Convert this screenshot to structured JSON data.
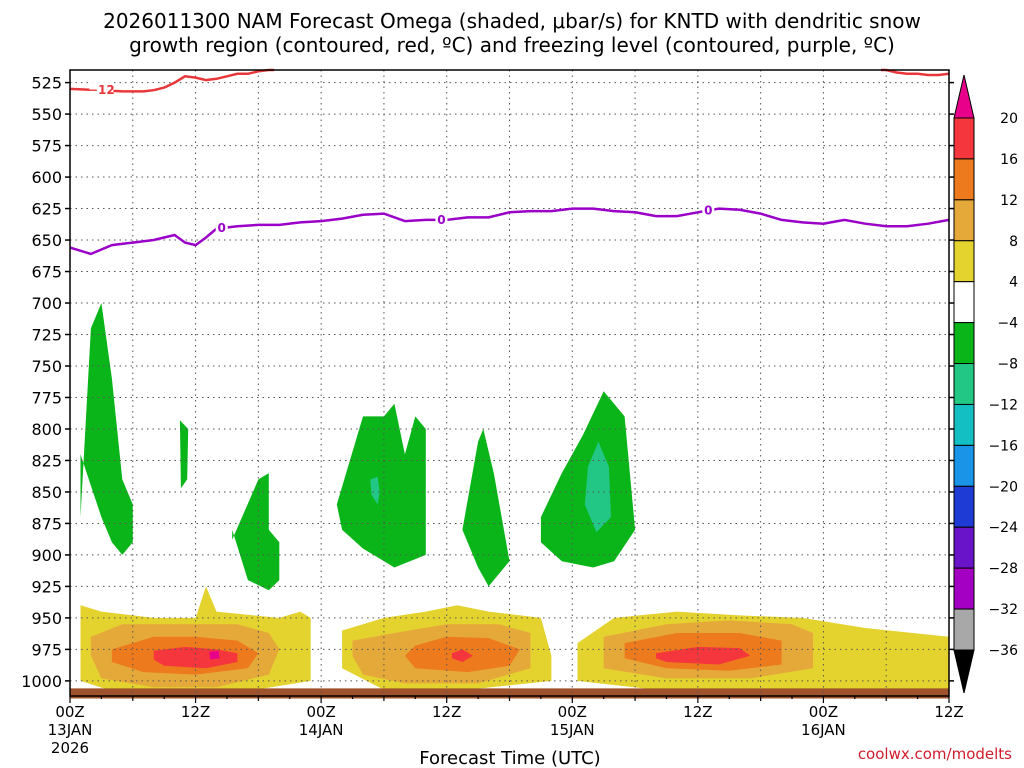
{
  "chart_data": {
    "type": "heatmap",
    "title_lines": [
      "2026011300 NAM Forecast Omega (shaded, μbar/s) for KNTD with dendritic snow",
      "growth region (contoured, red, ºC) and freezing level (contoured, purple, ºC)"
    ],
    "xlabel": "Forecast Time (UTC)",
    "ylabel": "",
    "y_axis_pressure_hpa": [
      525,
      550,
      575,
      600,
      625,
      650,
      675,
      700,
      725,
      750,
      775,
      800,
      825,
      850,
      875,
      900,
      925,
      950,
      975,
      1000
    ],
    "y_axis_reversed": true,
    "ylim": [
      515,
      1012
    ],
    "x_hours_range": [
      0,
      84
    ],
    "x_ticks": [
      {
        "hour": 0,
        "lines": [
          "00Z",
          "13JAN",
          "2026"
        ]
      },
      {
        "hour": 12,
        "lines": [
          "12Z"
        ]
      },
      {
        "hour": 24,
        "lines": [
          "00Z",
          "14JAN"
        ]
      },
      {
        "hour": 36,
        "lines": [
          "12Z"
        ]
      },
      {
        "hour": 48,
        "lines": [
          "00Z",
          "15JAN"
        ]
      },
      {
        "hour": 60,
        "lines": [
          "12Z"
        ]
      },
      {
        "hour": 72,
        "lines": [
          "00Z",
          "16JAN"
        ]
      },
      {
        "hour": 84,
        "lines": [
          "12Z"
        ]
      }
    ],
    "grid": true,
    "colorbar": {
      "labels": [
        "20",
        "16",
        "12",
        "8",
        "4",
        "−4",
        "−8",
        "−12",
        "−16",
        "−20",
        "−24",
        "−28",
        "−32",
        "−36"
      ],
      "colors": [
        "#e8008a",
        "#f5363d",
        "#ee7a1e",
        "#e5a93a",
        "#e4d32e",
        "#ffffff",
        "#0ab51a",
        "#22c785",
        "#14bfc3",
        "#1a94e6",
        "#1f3bd6",
        "#6a14c9",
        "#a400c4",
        "#a8a8a8",
        "#000000"
      ]
    },
    "contour_labels": {
      "dgz": "−12",
      "freezing": "0"
    },
    "freezing_level": {
      "hours": [
        0,
        2,
        4,
        6,
        8,
        10,
        11,
        12,
        13,
        14,
        16,
        18,
        20,
        22,
        24,
        26,
        28,
        30,
        32,
        34,
        36,
        38,
        40,
        42,
        44,
        46,
        48,
        50,
        52,
        54,
        56,
        58,
        60,
        62,
        64,
        66,
        68,
        70,
        72,
        74,
        76,
        78,
        80,
        82,
        84
      ],
      "hpa": [
        656,
        661,
        654,
        652,
        650,
        646,
        652,
        654,
        648,
        641,
        639,
        638,
        638,
        636,
        635,
        633,
        630,
        629,
        635,
        634,
        634,
        632,
        632,
        628,
        627,
        627,
        625,
        625,
        627,
        628,
        631,
        631,
        628,
        625,
        626,
        629,
        634,
        636,
        637,
        634,
        637,
        639,
        639,
        637,
        634
      ]
    },
    "dgz_minus12": [
      {
        "hours": [
          0,
          3,
          5,
          7,
          8,
          9,
          10,
          11,
          12,
          13,
          14,
          15,
          16,
          17,
          18,
          19,
          19.5
        ],
        "hpa": [
          530,
          531,
          532,
          532,
          531,
          529,
          525,
          520,
          521,
          523,
          522,
          520,
          518,
          518,
          516,
          515,
          514
        ]
      },
      {
        "hours": [
          77.5,
          78,
          79,
          80,
          81,
          82,
          83,
          84
        ],
        "hpa": [
          514,
          515,
          517,
          518,
          518,
          519,
          519,
          518
        ]
      }
    ],
    "omega_regions": [
      {
        "name": "green-13jan-early",
        "value": -6,
        "hours": [
          1,
          2,
          3,
          4,
          5,
          6,
          6,
          5,
          4,
          3,
          2,
          1
        ],
        "hpa": [
          870,
          720,
          700,
          760,
          840,
          860,
          890,
          900,
          890,
          870,
          845,
          820
        ]
      },
      {
        "name": "green-13jan-small",
        "value": -6,
        "hours": [
          10.5,
          11.3,
          11.2,
          10.6
        ],
        "hpa": [
          793,
          800,
          840,
          847
        ]
      },
      {
        "name": "green-13jan-late",
        "value": -6,
        "hours": [
          15.5,
          18,
          19,
          19,
          20,
          20,
          19,
          17,
          15.5
        ],
        "hpa": [
          888,
          840,
          835,
          880,
          890,
          920,
          928,
          920,
          880
        ]
      },
      {
        "name": "green-14jan-a",
        "value": -6,
        "hours": [
          25.5,
          28,
          30,
          31,
          32,
          33,
          34,
          34,
          31,
          28,
          26,
          25.5
        ],
        "hpa": [
          860,
          790,
          790,
          780,
          820,
          790,
          800,
          900,
          910,
          895,
          880,
          860
        ]
      },
      {
        "name": "green-14jan-b",
        "value": -6,
        "hours": [
          37.5,
          39,
          39.5,
          40.5,
          42,
          40,
          39,
          37.5
        ],
        "hpa": [
          880,
          810,
          800,
          835,
          905,
          925,
          910,
          880
        ]
      },
      {
        "name": "green-15jan",
        "value": -6,
        "hours": [
          45,
          47,
          49,
          51,
          53,
          54,
          52,
          50,
          47,
          45
        ],
        "hpa": [
          870,
          835,
          805,
          770,
          790,
          880,
          905,
          910,
          905,
          890
        ]
      },
      {
        "name": "teal-14jan",
        "value": -10,
        "hours": [
          28.7,
          29.4,
          29.6,
          29.4,
          28.8
        ],
        "hpa": [
          840,
          838,
          850,
          860,
          852
        ]
      },
      {
        "name": "teal-15jan",
        "value": -10,
        "hours": [
          49.5,
          50.5,
          51.5,
          51.7,
          50.3,
          49.2
        ],
        "hpa": [
          830,
          810,
          830,
          870,
          882,
          860
        ]
      },
      {
        "name": "yellow-13jan",
        "value": 6,
        "hours": [
          1,
          3,
          8,
          12,
          13,
          14,
          20,
          22,
          23,
          23,
          17,
          10,
          4,
          1
        ],
        "hpa": [
          940,
          945,
          950,
          950,
          925,
          945,
          950,
          945,
          950,
          1000,
          1008,
          1008,
          1008,
          1000
        ]
      },
      {
        "name": "yellow-14jan",
        "value": 6,
        "hours": [
          26,
          30,
          34,
          37,
          40,
          45,
          46,
          46,
          38,
          30,
          26
        ],
        "hpa": [
          960,
          950,
          945,
          940,
          945,
          950,
          980,
          1000,
          1007,
          1007,
          990
        ]
      },
      {
        "name": "yellow-15jan",
        "value": 6,
        "hours": [
          48.5,
          52,
          58,
          64,
          70,
          76,
          84,
          84,
          70,
          56,
          48.5
        ],
        "hpa": [
          970,
          950,
          945,
          948,
          950,
          958,
          965,
          1007,
          1007,
          1007,
          1000
        ]
      },
      {
        "name": "gold-13jan",
        "value": 10,
        "hours": [
          2,
          5,
          9,
          12,
          16,
          19,
          20,
          19,
          14,
          8,
          3,
          2
        ],
        "hpa": [
          965,
          955,
          955,
          955,
          955,
          962,
          975,
          995,
          1005,
          1005,
          998,
          980
        ]
      },
      {
        "name": "gold-14jan",
        "value": 10,
        "hours": [
          27,
          31,
          36,
          41,
          44,
          44,
          39,
          32,
          28,
          27
        ],
        "hpa": [
          968,
          962,
          955,
          955,
          962,
          990,
          1002,
          1002,
          995,
          980
        ]
      },
      {
        "name": "gold-15jan",
        "value": 10,
        "hours": [
          51,
          57,
          63,
          69,
          71,
          71,
          65,
          57,
          51,
          51
        ],
        "hpa": [
          965,
          955,
          952,
          955,
          962,
          990,
          998,
          998,
          990,
          978
        ]
      },
      {
        "name": "orange-13jan",
        "value": 14,
        "hours": [
          4,
          8,
          12,
          16,
          18,
          17,
          12,
          7,
          4
        ],
        "hpa": [
          975,
          965,
          965,
          968,
          978,
          990,
          995,
          993,
          985
        ]
      },
      {
        "name": "orange-14jan",
        "value": 14,
        "hours": [
          33,
          36,
          40,
          43,
          42,
          38,
          33,
          32
        ],
        "hpa": [
          972,
          965,
          966,
          975,
          988,
          993,
          990,
          980
        ]
      },
      {
        "name": "orange-15jan",
        "value": 14,
        "hours": [
          53,
          58,
          64,
          68,
          68,
          63,
          57,
          53
        ],
        "hpa": [
          970,
          962,
          962,
          968,
          987,
          992,
          990,
          982
        ]
      },
      {
        "name": "red-13jan",
        "value": 18,
        "hours": [
          8,
          11,
          14,
          16,
          16,
          13,
          9,
          8
        ],
        "hpa": [
          976,
          973,
          975,
          978,
          985,
          990,
          988,
          983
        ]
      },
      {
        "name": "red-14jan",
        "value": 18,
        "hours": [
          36.5,
          37.5,
          38.5,
          37.5,
          36.5
        ],
        "hpa": [
          978,
          975,
          980,
          985,
          982
        ]
      },
      {
        "name": "red-15jan",
        "value": 18,
        "hours": [
          56,
          60,
          64,
          65,
          62,
          57,
          56
        ],
        "hpa": [
          978,
          973,
          974,
          980,
          987,
          985,
          982
        ]
      },
      {
        "name": "magenta-13jan",
        "value": 22,
        "hours": [
          13.3,
          14.2,
          14.3,
          13.4
        ],
        "hpa": [
          977,
          976,
          982,
          983
        ]
      },
      {
        "name": "ground-strip",
        "value": 0,
        "hours": [
          0,
          84,
          84,
          0
        ],
        "hpa": [
          1006,
          1006,
          1014,
          1014
        ]
      }
    ],
    "credit": "coolwx.com/modelts"
  }
}
